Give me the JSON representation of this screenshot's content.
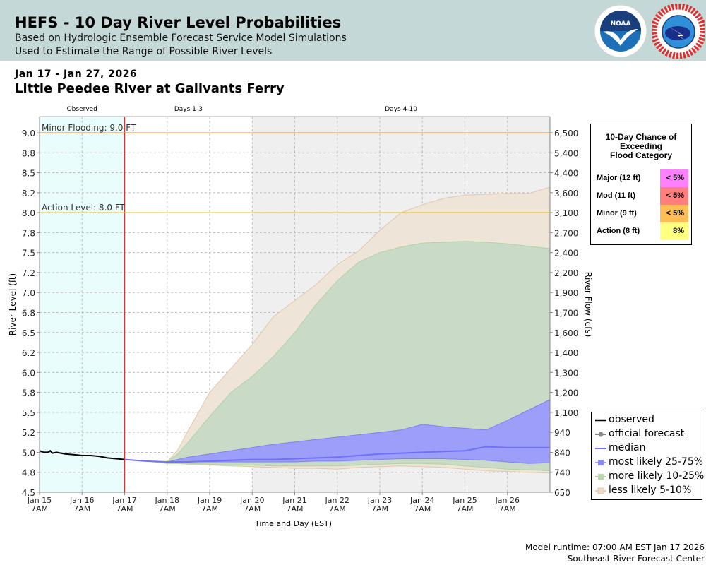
{
  "header": {
    "title": "HEFS - 10 Day River Level Probabilities",
    "subtitle1": "Based on Hydrologic Ensemble Forecast Service Model Simulations",
    "subtitle2": "Used to Estimate the Range of Possible River Levels",
    "logos": [
      "NOAA",
      "NATIONAL WEATHER SERVICE"
    ]
  },
  "date_range": "Jan 17 - Jan 27, 2026",
  "location": "Little Peedee River at Galivants Ferry",
  "flood_box": {
    "title_lines": [
      "10-Day Chance of",
      "Exceeding",
      "Flood Category"
    ],
    "rows": [
      {
        "label": "Major (12 ft)",
        "value": "< 5%",
        "color": "#ff80ff"
      },
      {
        "label": "Mod (11 ft)",
        "value": "< 5%",
        "color": "#ff7f7f"
      },
      {
        "label": "Minor (9 ft)",
        "value": "< 5%",
        "color": "#ffbe55"
      },
      {
        "label": "Action (8 ft)",
        "value": "8%",
        "color": "#ffff80"
      }
    ]
  },
  "footer": {
    "runtime": "Model runtime: 07:00 AM EST Jan 17 2026",
    "center": "Southeast River Forecast Center"
  },
  "chart_data": {
    "type": "area",
    "title": "Little Peedee River at Galivants Ferry",
    "xlabel": "Time and Day (EST)",
    "ylabel": "River Level (ft)",
    "y2label": "River Flow (cfs)",
    "xlim": [
      0,
      12
    ],
    "ylim": [
      4.5,
      9.2
    ],
    "grid": true,
    "legend_position": "bottom-right",
    "x_ticks": [
      {
        "x": 0,
        "line1": "Jan 15",
        "line2": "7AM"
      },
      {
        "x": 1,
        "line1": "Jan 16",
        "line2": "7AM"
      },
      {
        "x": 2,
        "line1": "Jan 17",
        "line2": "7AM"
      },
      {
        "x": 3,
        "line1": "Jan 18",
        "line2": "7AM"
      },
      {
        "x": 4,
        "line1": "Jan 19",
        "line2": "7AM"
      },
      {
        "x": 5,
        "line1": "Jan 20",
        "line2": "7AM"
      },
      {
        "x": 6,
        "line1": "Jan 21",
        "line2": "7AM"
      },
      {
        "x": 7,
        "line1": "Jan 22",
        "line2": "7AM"
      },
      {
        "x": 8,
        "line1": "Jan 23",
        "line2": "7AM"
      },
      {
        "x": 9,
        "line1": "Jan 24",
        "line2": "7AM"
      },
      {
        "x": 10,
        "line1": "Jan 25",
        "line2": "7AM"
      },
      {
        "x": 11,
        "line1": "Jan 26",
        "line2": "7AM"
      }
    ],
    "y_ticks": [
      {
        "y": 4.5,
        "label": "4.5",
        "flow": "650"
      },
      {
        "y": 4.75,
        "label": "4.8",
        "flow": "740"
      },
      {
        "y": 5.0,
        "label": "5.0",
        "flow": "840"
      },
      {
        "y": 5.25,
        "label": "5.2",
        "flow": "940"
      },
      {
        "y": 5.5,
        "label": "5.5",
        "flow": "1,100"
      },
      {
        "y": 5.75,
        "label": "5.8",
        "flow": "1,200"
      },
      {
        "y": 6.0,
        "label": "6.0",
        "flow": "1,300"
      },
      {
        "y": 6.25,
        "label": "6.2",
        "flow": "1,400"
      },
      {
        "y": 6.5,
        "label": "6.5",
        "flow": "1,600"
      },
      {
        "y": 6.75,
        "label": "6.8",
        "flow": "1,700"
      },
      {
        "y": 7.0,
        "label": "7.0",
        "flow": "1,900"
      },
      {
        "y": 7.25,
        "label": "7.2",
        "flow": "2,200"
      },
      {
        "y": 7.5,
        "label": "7.5",
        "flow": "2,400"
      },
      {
        "y": 7.75,
        "label": "7.8",
        "flow": "2,700"
      },
      {
        "y": 8.0,
        "label": "8.0",
        "flow": "3,100"
      },
      {
        "y": 8.25,
        "label": "8.2",
        "flow": "3,600"
      },
      {
        "y": 8.5,
        "label": "8.5",
        "flow": "4,400"
      },
      {
        "y": 8.75,
        "label": "8.8",
        "flow": "5,400"
      },
      {
        "y": 9.0,
        "label": "9.0",
        "flow": "6,500"
      }
    ],
    "periods": [
      {
        "label": "Observed",
        "start": 0,
        "end": 2,
        "color": "#e9fdfd"
      },
      {
        "label": "Days 1-3",
        "start": 2,
        "end": 5,
        "color": "#ffffff"
      },
      {
        "label": "Days 4-10",
        "start": 5,
        "end": 12,
        "color": "#efefef"
      }
    ],
    "thresholds": [
      {
        "label": "Minor Flooding: 9.0 FT",
        "y": 9.0,
        "color": "#f0a050"
      },
      {
        "label": "Action Level: 8.0 FT",
        "y": 8.0,
        "color": "#f5c518"
      }
    ],
    "now_x": 2,
    "observed": {
      "x": [
        0,
        0.1,
        0.2,
        0.25,
        0.3,
        0.4,
        0.5,
        0.6,
        0.8,
        1.0,
        1.2,
        1.4,
        1.6,
        1.8,
        2.0
      ],
      "y": [
        5.02,
        5.0,
        5.0,
        5.02,
        4.99,
        5.0,
        4.99,
        4.98,
        4.97,
        4.96,
        4.96,
        4.95,
        4.93,
        4.92,
        4.91
      ]
    },
    "x": [
      2,
      2.5,
      3,
      3.25,
      3.5,
      4,
      4.5,
      5,
      5.5,
      6,
      6.5,
      7,
      7.5,
      8,
      8.5,
      9,
      9.5,
      10,
      10.5,
      11,
      11.5,
      12
    ],
    "series": [
      {
        "name": "less likely 5-10%",
        "upper": [
          4.91,
          4.89,
          4.88,
          5.03,
          5.28,
          5.75,
          6.05,
          6.35,
          6.7,
          6.9,
          7.1,
          7.35,
          7.52,
          7.78,
          8.0,
          8.1,
          8.18,
          8.22,
          8.23,
          8.24,
          8.24,
          8.32
        ],
        "lower": [
          4.91,
          4.89,
          4.86,
          4.86,
          4.85,
          4.84,
          4.83,
          4.82,
          4.81,
          4.8,
          4.8,
          4.79,
          4.81,
          4.82,
          4.83,
          4.82,
          4.81,
          4.79,
          4.77,
          4.76,
          4.75,
          4.74
        ],
        "color": "#eee4d8",
        "edge": "#e0c8a8"
      },
      {
        "name": "more likely 10-25%",
        "upper": [
          4.91,
          4.89,
          4.88,
          4.98,
          5.13,
          5.45,
          5.75,
          5.95,
          6.2,
          6.5,
          6.85,
          7.15,
          7.38,
          7.5,
          7.57,
          7.62,
          7.63,
          7.64,
          7.63,
          7.61,
          7.58,
          7.55
        ],
        "lower": [
          4.91,
          4.89,
          4.86,
          4.86,
          4.86,
          4.85,
          4.84,
          4.84,
          4.83,
          4.83,
          4.83,
          4.83,
          4.84,
          4.85,
          4.86,
          4.86,
          4.85,
          4.83,
          4.81,
          4.79,
          4.78,
          4.77
        ],
        "color": "#c9dac6",
        "edge": "#aed4a4"
      },
      {
        "name": "most likely 25-75%",
        "upper": [
          4.91,
          4.89,
          4.88,
          4.91,
          4.94,
          4.98,
          5.02,
          5.06,
          5.1,
          5.13,
          5.16,
          5.19,
          5.22,
          5.25,
          5.28,
          5.35,
          5.32,
          5.3,
          5.28,
          5.4,
          5.53,
          5.66
        ],
        "lower": [
          4.91,
          4.89,
          4.88,
          4.88,
          4.88,
          4.88,
          4.88,
          4.88,
          4.88,
          4.88,
          4.89,
          4.89,
          4.9,
          4.91,
          4.92,
          4.92,
          4.92,
          4.91,
          4.9,
          4.88,
          4.86,
          4.87
        ],
        "color": "#9d9dfa",
        "edge": "#7f7ff5"
      },
      {
        "name": "median",
        "values": [
          4.91,
          4.89,
          4.88,
          4.88,
          4.88,
          4.89,
          4.9,
          4.91,
          4.91,
          4.92,
          4.93,
          4.94,
          4.96,
          4.98,
          4.99,
          5.0,
          5.01,
          5.02,
          5.07,
          5.06,
          5.06,
          5.06
        ],
        "color": "#7070ff"
      }
    ],
    "legend": [
      {
        "name": "observed",
        "kind": "line",
        "color": "#000000"
      },
      {
        "name": "official forecast",
        "kind": "dot",
        "color": "#808080"
      },
      {
        "name": "median",
        "kind": "line",
        "color": "#7070ff"
      },
      {
        "name": "most likely 25-75%",
        "kind": "box",
        "color": "#8888ff"
      },
      {
        "name": "more likely 10-25%",
        "kind": "box",
        "color": "#b5d6ab"
      },
      {
        "name": "less likely 5-10%",
        "kind": "box",
        "color": "#eadcc9"
      }
    ]
  }
}
